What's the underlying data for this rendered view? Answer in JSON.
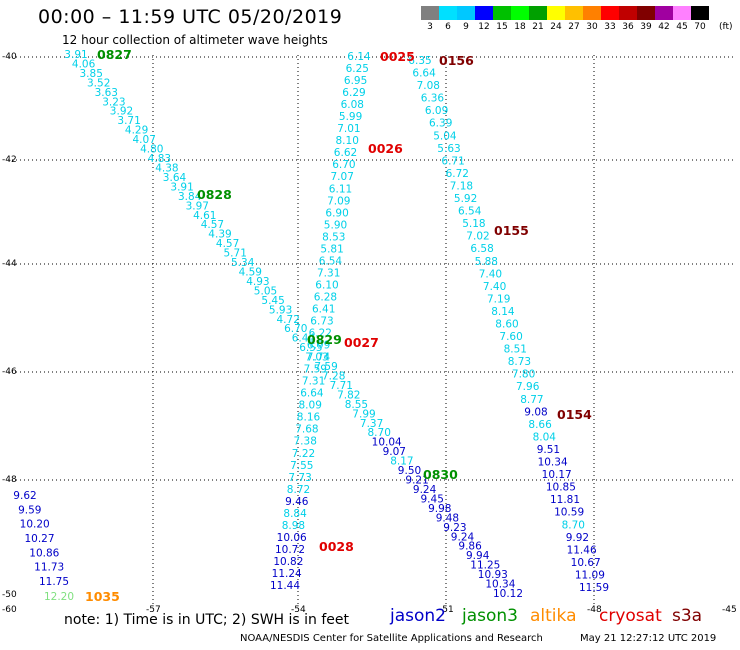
{
  "header": {
    "title": "00:00 – 11:59 UTC 05/20/2019",
    "subtitle": "12 hour collection of altimeter wave heights"
  },
  "color_scale": {
    "labels": [
      "3",
      "6",
      "9",
      "12",
      "15",
      "18",
      "21",
      "24",
      "27",
      "30",
      "33",
      "36",
      "39",
      "42",
      "45",
      "70"
    ],
    "unit": "(ft)",
    "colors": [
      "#808080",
      "#00e0ff",
      "#00c8ff",
      "#0000ff",
      "#00c000",
      "#00ff00",
      "#00a000",
      "#ffff00",
      "#ffc000",
      "#ff8000",
      "#ff0000",
      "#c00000",
      "#800000",
      "#a000a0",
      "#ff80ff",
      "#000000"
    ]
  },
  "axes": {
    "y_labels": [
      "-40",
      "-42",
      "-44",
      "-46",
      "-48",
      "-50"
    ],
    "x_labels": [
      "-60",
      "-57",
      "-54",
      "-51",
      "-48",
      "-45"
    ]
  },
  "tracks": {
    "t1": [
      "3.91",
      "4.06",
      "3.85",
      "3.52",
      "3.63",
      "3.23",
      "3.92",
      "3.71",
      "4.29",
      "4.07",
      "4.80",
      "4.83",
      "4.38",
      "3.64",
      "3.91",
      "3.84",
      "3.97",
      "4.61",
      "4.57",
      "4.39",
      "4.57",
      "5.71",
      "5.34",
      "4.59",
      "4.93",
      "5.05",
      "5.45",
      "5.93",
      "4.72",
      "6.70",
      "6.44",
      "6.55",
      "7.74",
      "7.59",
      "7.28",
      "7.71",
      "7.82",
      "8.55",
      "7.99",
      "7.37",
      "8.70",
      "10.04",
      "9.07",
      "8.17",
      "9.50",
      "9.21",
      "9.24",
      "9.45",
      "9.98",
      "9.48",
      "9.23",
      "9.24",
      "9.86",
      "9.94",
      "11.25",
      "10.93",
      "10.34",
      "10.12"
    ],
    "t2": [
      "6.14",
      "6.25",
      "6.95",
      "6.29",
      "6.08",
      "5.99",
      "7.01",
      "8.10",
      "6.62",
      "6.70",
      "7.07",
      "6.11",
      "7.09",
      "6.90",
      "5.90",
      "8.53",
      "5.81",
      "6.54",
      "7.31",
      "6.10",
      "6.28",
      "6.41",
      "6.73",
      "6.22",
      "6.99",
      "7.03",
      "7.59",
      "7.31",
      "6.64",
      "8.09",
      "8.16",
      "7.68",
      "7.38",
      "7.22",
      "7.55",
      "7.73",
      "8.72",
      "9.46",
      "8.84",
      "8.98",
      "10.06",
      "10.72",
      "10.82",
      "11.24",
      "11.44"
    ],
    "t3": [
      "6.35",
      "6.64",
      "7.08",
      "6.36",
      "6.09",
      "6.39",
      "5.04",
      "5.63",
      "6.71",
      "6.72",
      "7.18",
      "5.92",
      "6.54",
      "5.18",
      "7.02",
      "6.58",
      "5.88",
      "7.40",
      "7.40",
      "7.19",
      "8.14",
      "8.60",
      "7.60",
      "8.51",
      "8.73",
      "7.80",
      "7.96",
      "8.77",
      "9.08",
      "8.66",
      "8.04",
      "9.51",
      "10.34",
      "10.17",
      "10.85",
      "11.81",
      "10.59",
      "8.70",
      "9.92",
      "11.46",
      "10.67",
      "11.09",
      "11.59"
    ],
    "t4": [
      "9.62",
      "9.59",
      "10.20",
      "10.27",
      "10.86",
      "11.73",
      "11.75"
    ],
    "t5": [
      "12.20"
    ]
  },
  "time_labels": {
    "t0827": "0827",
    "t0828": "0828",
    "t0829": "0829",
    "t0830": "0830",
    "t0025": "0025",
    "t0026": "0026",
    "t0027": "0027",
    "t0028": "0028",
    "t0156": "0156",
    "t0155": "0155",
    "t0154": "0154",
    "t1035": "1035"
  },
  "footer": {
    "note": "note: 1) Time is in UTC; 2) SWH is in feet",
    "satellites": [
      {
        "name": "jason2",
        "color": "#0000c8"
      },
      {
        "name": "jason3",
        "color": "#009000"
      },
      {
        "name": "altika",
        "color": "#ff8c00"
      },
      {
        "name": "cryosat",
        "color": "#e00000"
      },
      {
        "name": "s3a",
        "color": "#800000"
      }
    ],
    "credit": "NOAA/NESDIS Center for Satellite Applications and Research",
    "timestamp": "May 21 12:27:12 UTC 2019"
  }
}
